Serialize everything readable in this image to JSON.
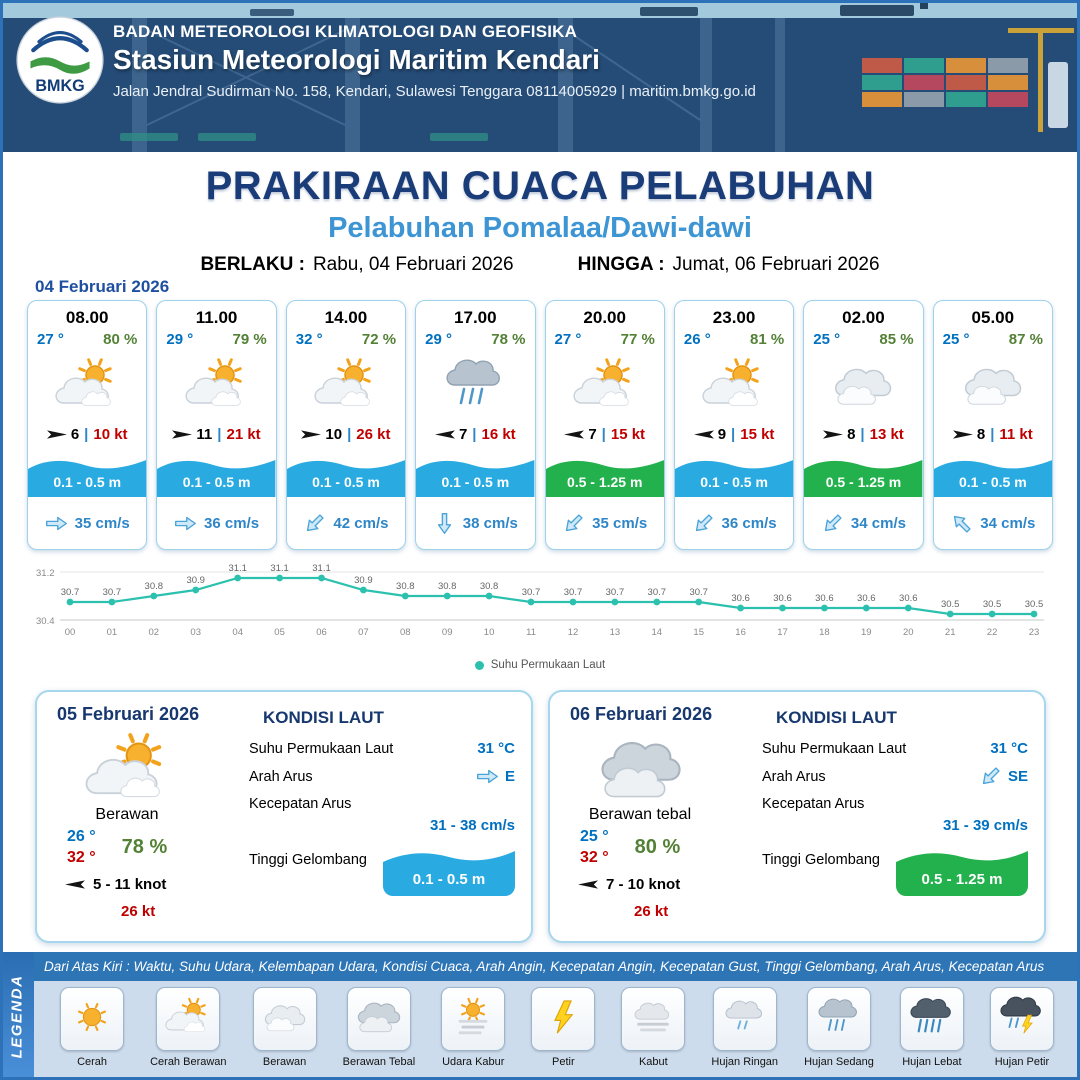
{
  "colors": {
    "navy": "#17386e",
    "subtitle_blue": "#3d95d4",
    "temp_blue": "#0070c0",
    "humidity_green": "#538135",
    "gust_red": "#c00000",
    "wave_blue": "#29abe2",
    "wave_green": "#22b14c",
    "current_blue": "#2e86c8",
    "chart_teal": "#2cc0ae"
  },
  "header": {
    "logo_text": "BMKG",
    "agency": "BADAN METEOROLOGI KLIMATOLOGI DAN GEOFISIKA",
    "station": "Stasiun Meteorologi Maritim Kendari",
    "address": "Jalan Jendral Sudirman No. 158, Kendari, Sulawesi Tenggara  08114005929 | maritim.bmkg.go.id"
  },
  "title": {
    "main": "PRAKIRAAN CUACA PELABUHAN",
    "subtitle": "Pelabuhan Pomalaa/Dawi-dawi",
    "valid_from_label": "BERLAKU :",
    "valid_from": "Rabu, 04 Februari 2026",
    "valid_to_label": "HINGGA :",
    "valid_to": "Jumat, 06 Februari 2026"
  },
  "forecast": {
    "date": "04 Februari 2026",
    "cards": [
      {
        "time": "08.00",
        "temp": "27 °",
        "humidity": "80 %",
        "icon": "cerah-berawan",
        "wind_speed": "6",
        "wind_gust": "10 kt",
        "wind_deg": 0,
        "wave": "0.1 - 0.5 m",
        "wave_color": "#29abe2",
        "current": "35 cm/s",
        "current_deg": 0
      },
      {
        "time": "11.00",
        "temp": "29 °",
        "humidity": "79 %",
        "icon": "cerah-berawan",
        "wind_speed": "11",
        "wind_gust": "21 kt",
        "wind_deg": 0,
        "wave": "0.1 - 0.5 m",
        "wave_color": "#29abe2",
        "current": "36 cm/s",
        "current_deg": 0
      },
      {
        "time": "14.00",
        "temp": "32 °",
        "humidity": "72 %",
        "icon": "cerah-berawan",
        "wind_speed": "10",
        "wind_gust": "26 kt",
        "wind_deg": 0,
        "wave": "0.1 - 0.5 m",
        "wave_color": "#29abe2",
        "current": "42 cm/s",
        "current_deg": 135
      },
      {
        "time": "17.00",
        "temp": "29 °",
        "humidity": "78 %",
        "icon": "hujan-sedang",
        "wind_speed": "7",
        "wind_gust": "16 kt",
        "wind_deg": 180,
        "wave": "0.1 - 0.5 m",
        "wave_color": "#29abe2",
        "current": "38 cm/s",
        "current_deg": 90
      },
      {
        "time": "20.00",
        "temp": "27 °",
        "humidity": "77 %",
        "icon": "cerah-berawan",
        "wind_speed": "7",
        "wind_gust": "15 kt",
        "wind_deg": 180,
        "wave": "0.5 - 1.25 m",
        "wave_color": "#22b14c",
        "current": "35 cm/s",
        "current_deg": 135
      },
      {
        "time": "23.00",
        "temp": "26 °",
        "humidity": "81 %",
        "icon": "cerah-berawan",
        "wind_speed": "9",
        "wind_gust": "15 kt",
        "wind_deg": 180,
        "wave": "0.1 - 0.5 m",
        "wave_color": "#29abe2",
        "current": "36 cm/s",
        "current_deg": 135
      },
      {
        "time": "02.00",
        "temp": "25 °",
        "humidity": "85 %",
        "icon": "berawan",
        "wind_speed": "8",
        "wind_gust": "13 kt",
        "wind_deg": 0,
        "wave": "0.5 - 1.25 m",
        "wave_color": "#22b14c",
        "current": "34 cm/s",
        "current_deg": 135
      },
      {
        "time": "05.00",
        "temp": "25 °",
        "humidity": "87 %",
        "icon": "berawan",
        "wind_speed": "8",
        "wind_gust": "11 kt",
        "wind_deg": 0,
        "wave": "0.1 - 0.5 m",
        "wave_color": "#29abe2",
        "current": "34 cm/s",
        "current_deg": 225
      }
    ]
  },
  "chart_data": {
    "type": "line",
    "x": [
      "00",
      "01",
      "02",
      "03",
      "04",
      "05",
      "06",
      "07",
      "08",
      "09",
      "10",
      "11",
      "12",
      "13",
      "14",
      "15",
      "16",
      "17",
      "18",
      "19",
      "20",
      "21",
      "22",
      "23"
    ],
    "values": [
      30.7,
      30.7,
      30.8,
      30.9,
      31.1,
      31.1,
      31.1,
      30.9,
      30.8,
      30.8,
      30.8,
      30.7,
      30.7,
      30.7,
      30.7,
      30.7,
      30.6,
      30.6,
      30.6,
      30.6,
      30.6,
      30.5,
      30.5,
      30.5
    ],
    "ylim": [
      30.4,
      31.2
    ],
    "legend": "Suhu Permukaan Laut",
    "line_color": "#2cc0ae"
  },
  "day_cards": [
    {
      "date": "05 Februari 2026",
      "icon": "cerah-berawan",
      "condition": "Berawan",
      "temp_min": "26 °",
      "temp_max": "32 °",
      "humidity": "78 %",
      "wind_deg": 180,
      "wind": "5 - 11 knot",
      "gust": "26 kt",
      "sea": {
        "title": "KONDISI LAUT",
        "sst_label": "Suhu Permukaan Laut",
        "sst": "31 °C",
        "dir_label": "Arah Arus",
        "dir": "E",
        "dir_deg": 0,
        "speed_label": "Kecepatan Arus",
        "speed": "31 - 38 cm/s",
        "wave_label": "Tinggi Gelombang",
        "wave": "0.1 - 0.5 m",
        "wave_color": "#29abe2"
      }
    },
    {
      "date": "06 Februari 2026",
      "icon": "berawan-tebal",
      "condition": "Berawan tebal",
      "temp_min": "25 °",
      "temp_max": "32 °",
      "humidity": "80 %",
      "wind_deg": 180,
      "wind": "7 - 10 knot",
      "gust": "26 kt",
      "sea": {
        "title": "KONDISI LAUT",
        "sst_label": "Suhu Permukaan Laut",
        "sst": "31 °C",
        "dir_label": "Arah Arus",
        "dir": "SE",
        "dir_deg": 135,
        "speed_label": "Kecepatan Arus",
        "speed": "31 - 39 cm/s",
        "wave_label": "Tinggi Gelombang",
        "wave": "0.5 - 1.25 m",
        "wave_color": "#22b14c"
      }
    }
  ],
  "legend": {
    "vertical_label": "LEGENDA",
    "note": "Dari Atas Kiri : Waktu, Suhu Udara, Kelembapan Udara, Kondisi Cuaca, Arah Angin, Kecepatan Angin, Kecepatan Gust, Tinggi Gelombang, Arah Arus, Kecepatan Arus",
    "items": [
      {
        "icon": "cerah",
        "label": "Cerah"
      },
      {
        "icon": "cerah-berawan",
        "label": "Cerah Berawan"
      },
      {
        "icon": "berawan",
        "label": "Berawan"
      },
      {
        "icon": "berawan-tebal",
        "label": "Berawan Tebal"
      },
      {
        "icon": "udara-kabur",
        "label": "Udara Kabur"
      },
      {
        "icon": "petir",
        "label": "Petir"
      },
      {
        "icon": "kabut",
        "label": "Kabut"
      },
      {
        "icon": "hujan-ringan",
        "label": "Hujan Ringan"
      },
      {
        "icon": "hujan-sedang",
        "label": "Hujan Sedang"
      },
      {
        "icon": "hujan-lebat",
        "label": "Hujan Lebat"
      },
      {
        "icon": "hujan-petir",
        "label": "Hujan Petir"
      }
    ]
  }
}
